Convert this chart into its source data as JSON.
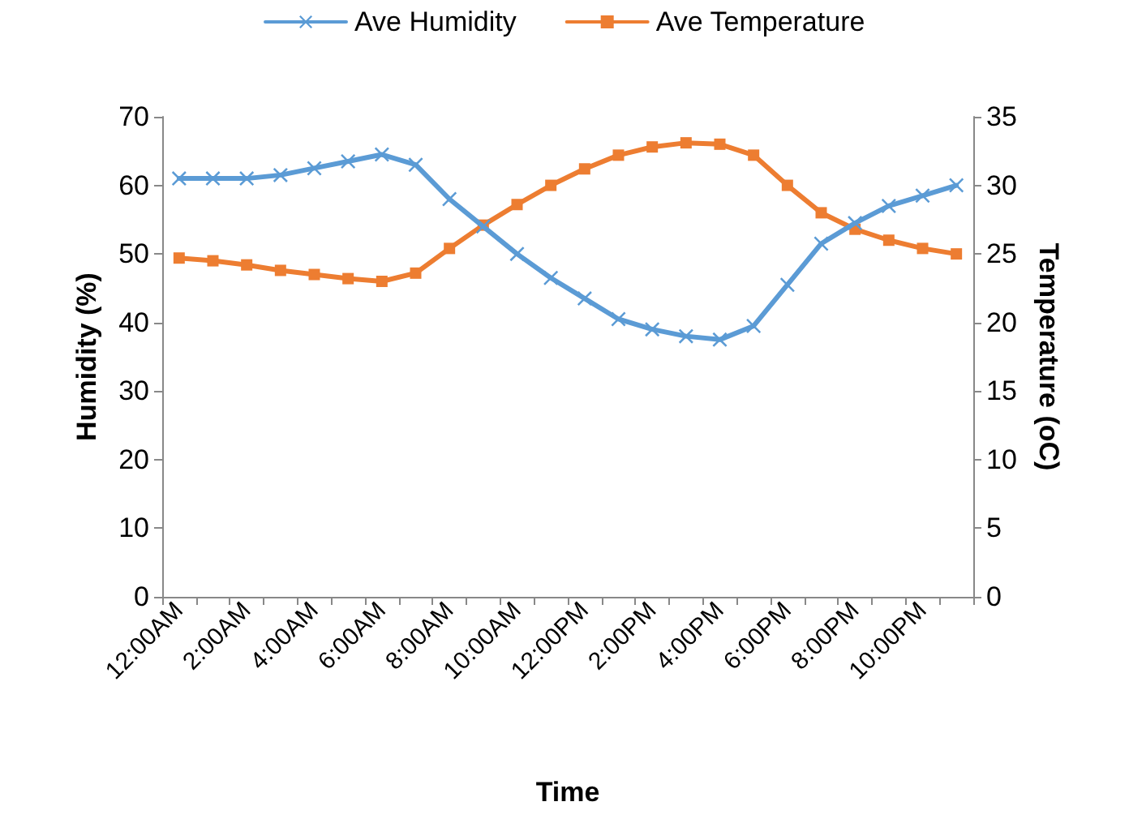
{
  "chart_data": {
    "type": "line",
    "categories": [
      "12:00AM",
      null,
      "2:00AM",
      null,
      "4:00AM",
      null,
      "6:00AM",
      null,
      "8:00AM",
      null,
      "10:00AM",
      null,
      "12:00PM",
      null,
      "2:00PM",
      null,
      "4:00PM",
      null,
      "6:00PM",
      null,
      "8:00PM",
      null,
      "10:00PM",
      null
    ],
    "series": [
      {
        "name": "Ave Humidity",
        "color": "#5b9bd5",
        "marker": "cross",
        "values": [
          61,
          61,
          61,
          61.5,
          62.5,
          63.5,
          64.5,
          63,
          58,
          54,
          50,
          46.5,
          43.5,
          40.5,
          39,
          38,
          37.5,
          39.5,
          45.5,
          51.5,
          54.5,
          57,
          58.5,
          60
        ]
      },
      {
        "name": "Ave Temperature",
        "color": "#ed7d31",
        "marker": "square",
        "axis": "y2",
        "values": [
          24.7,
          24.5,
          24.2,
          23.8,
          23.5,
          23.2,
          23.0,
          23.6,
          25.4,
          27.1,
          28.6,
          30.0,
          31.2,
          32.2,
          32.8,
          33.1,
          33.0,
          32.2,
          30.0,
          28.0,
          26.8,
          26.0,
          25.4,
          25.0
        ]
      }
    ],
    "xlabel": "Time",
    "ylabel": "Humidity (%)",
    "y2label": "Temperature (oC)",
    "ylim": [
      0,
      70
    ],
    "yticks": [
      0,
      10,
      20,
      30,
      40,
      50,
      60,
      70
    ],
    "y2lim": [
      0,
      35
    ],
    "y2ticks": [
      0,
      5,
      10,
      15,
      20,
      25,
      30,
      35
    ],
    "legend": "top",
    "grid": false,
    "line_style": "solid"
  }
}
